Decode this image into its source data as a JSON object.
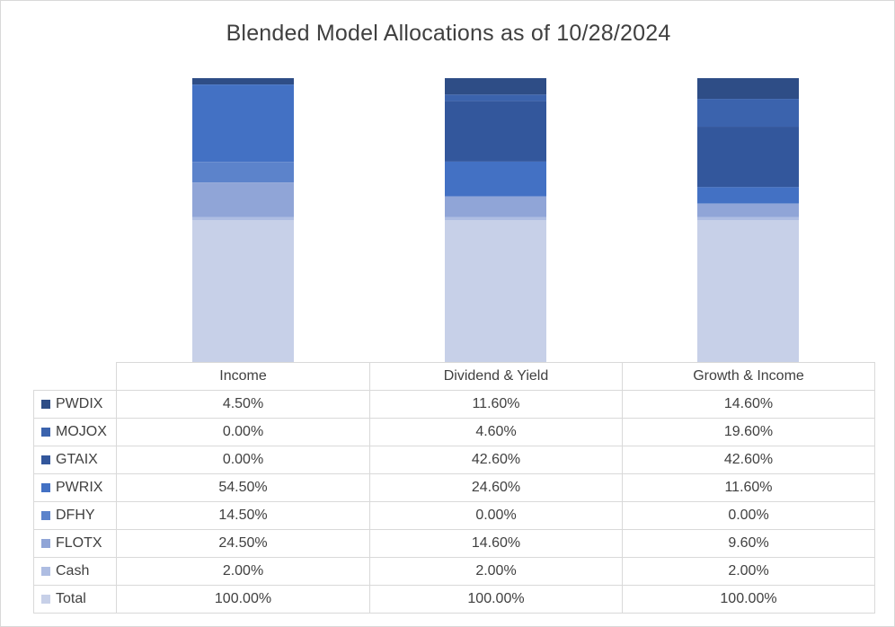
{
  "chart_data": {
    "type": "bar",
    "stacked": true,
    "title": "Blended Model Allocations as of 10/28/2024",
    "categories": [
      "Income",
      "Dividend & Yield",
      "Growth & Income"
    ],
    "series": [
      {
        "name": "PWDIX",
        "values": [
          "4.50%",
          "11.60%",
          "14.60%"
        ],
        "color": "#2e4d86"
      },
      {
        "name": "MOJOX",
        "values": [
          "0.00%",
          "4.60%",
          "19.60%"
        ],
        "color": "#3b63ad"
      },
      {
        "name": "GTAIX",
        "values": [
          "0.00%",
          "42.60%",
          "42.60%"
        ],
        "color": "#33579c"
      },
      {
        "name": "PWRIX",
        "values": [
          "54.50%",
          "24.60%",
          "11.60%"
        ],
        "color": "#4371c4"
      },
      {
        "name": "DFHY",
        "values": [
          "14.50%",
          "0.00%",
          "0.00%"
        ],
        "color": "#5c83cb"
      },
      {
        "name": "FLOTX",
        "values": [
          "24.50%",
          "14.60%",
          "9.60%"
        ],
        "color": "#90a5d7"
      },
      {
        "name": "Cash",
        "values": [
          "2.00%",
          "2.00%",
          "2.00%"
        ],
        "color": "#aebde2"
      },
      {
        "name": "Total",
        "values": [
          "100.00%",
          "100.00%",
          "100.00%"
        ],
        "color": "#c7d0e8"
      }
    ],
    "legend": "data-table",
    "grid": false
  }
}
